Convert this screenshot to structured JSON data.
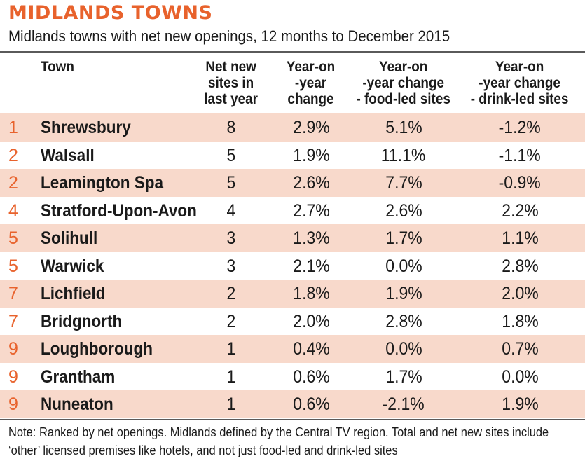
{
  "title": "MIDLANDS TOWNS",
  "subtitle": "Midlands towns with net new openings, 12 months to December 2015",
  "columns": {
    "town": [
      "Town"
    ],
    "net_new": [
      "Net new",
      "sites in",
      "last year"
    ],
    "yoy_change": [
      "Year-on",
      "-year",
      "change"
    ],
    "food_led": [
      "Year-on",
      "-year change",
      "- food-led sites"
    ],
    "drink_led": [
      "Year-on",
      "-year change",
      "- drink-led sites"
    ]
  },
  "rows": [
    {
      "rank": "1",
      "town": "Shrewsbury",
      "net_new": "8",
      "yoy": "2.9%",
      "food": "5.1%",
      "drink": "-1.2%"
    },
    {
      "rank": "2",
      "town": "Walsall",
      "net_new": "5",
      "yoy": "1.9%",
      "food": "11.1%",
      "drink": "-1.1%"
    },
    {
      "rank": "2",
      "town": "Leamington Spa",
      "net_new": "5",
      "yoy": "2.6%",
      "food": "7.7%",
      "drink": "-0.9%"
    },
    {
      "rank": "4",
      "town": "Stratford-Upon-Avon",
      "net_new": "4",
      "yoy": "2.7%",
      "food": "2.6%",
      "drink": "2.2%"
    },
    {
      "rank": "5",
      "town": "Solihull",
      "net_new": "3",
      "yoy": "1.3%",
      "food": "1.7%",
      "drink": "1.1%"
    },
    {
      "rank": "5",
      "town": "Warwick",
      "net_new": "3",
      "yoy": "2.1%",
      "food": "0.0%",
      "drink": "2.8%"
    },
    {
      "rank": "7",
      "town": "Lichfield",
      "net_new": "2",
      "yoy": "1.8%",
      "food": "1.9%",
      "drink": "2.0%"
    },
    {
      "rank": "7",
      "town": "Bridgnorth",
      "net_new": "2",
      "yoy": "2.0%",
      "food": "2.8%",
      "drink": "1.8%"
    },
    {
      "rank": "9",
      "town": "Loughborough",
      "net_new": "1",
      "yoy": "0.4%",
      "food": "0.0%",
      "drink": "0.7%"
    },
    {
      "rank": "9",
      "town": "Grantham",
      "net_new": "1",
      "yoy": "0.6%",
      "food": "1.7%",
      "drink": "0.0%"
    },
    {
      "rank": "9",
      "town": "Nuneaton",
      "net_new": "1",
      "yoy": "0.6%",
      "food": "-2.1%",
      "drink": "1.9%"
    }
  ],
  "note": [
    "Note: Ranked by net openings. Midlands defined by the Central TV region. Total and net new sites include",
    "‘other’ licensed premises like hotels, and not just food-led and drink-led sites"
  ],
  "colors": {
    "accent": "#e8622c",
    "row_shade": "#f8d9cb",
    "rule": "#5a5a5a"
  }
}
